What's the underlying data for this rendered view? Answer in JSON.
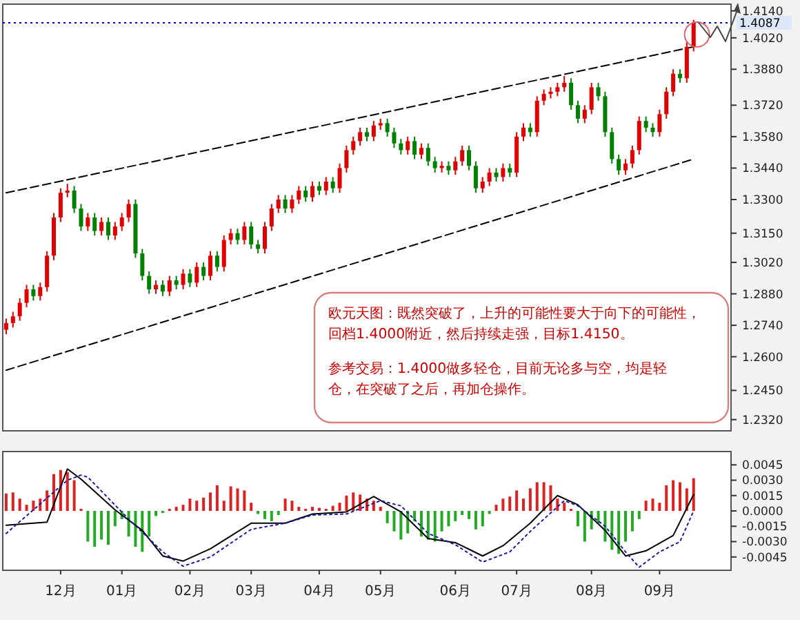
{
  "chart_data": [
    {
      "type": "candlestick",
      "categories": [
        null,
        null,
        null,
        null,
        null,
        null,
        null,
        null,
        null,
        null,
        null,
        null,
        null,
        null,
        null,
        null,
        null,
        null,
        null,
        null,
        null,
        null,
        null,
        null,
        null,
        null,
        null,
        null,
        null,
        null,
        null,
        null,
        null,
        null,
        null,
        null,
        null,
        null,
        null,
        null,
        null,
        null,
        null,
        null,
        null,
        null,
        null,
        null,
        null,
        null,
        null,
        null,
        null,
        null,
        null,
        null,
        null,
        null,
        null,
        null,
        null,
        null,
        null,
        null,
        null,
        null,
        null,
        null,
        null,
        null,
        null,
        null,
        null,
        null,
        null,
        null,
        null,
        null,
        null,
        null,
        null,
        null,
        null,
        null,
        null,
        null,
        null,
        null,
        null,
        null,
        null,
        null,
        null,
        null,
        null,
        null,
        null,
        null,
        null,
        null,
        null,
        null
      ],
      "ohlc": [
        [
          1.272,
          1.277,
          1.27,
          1.275
        ],
        [
          1.275,
          1.28,
          1.273,
          1.278
        ],
        [
          1.278,
          1.286,
          1.276,
          1.284
        ],
        [
          1.284,
          1.292,
          1.282,
          1.29
        ],
        [
          1.29,
          1.292,
          1.285,
          1.287
        ],
        [
          1.287,
          1.293,
          1.285,
          1.291
        ],
        [
          1.291,
          1.307,
          1.289,
          1.305
        ],
        [
          1.305,
          1.324,
          1.303,
          1.322
        ],
        [
          1.322,
          1.335,
          1.32,
          1.333
        ],
        [
          1.333,
          1.337,
          1.331,
          1.334
        ],
        [
          1.334,
          1.336,
          1.324,
          1.326
        ],
        [
          1.326,
          1.328,
          1.316,
          1.318
        ],
        [
          1.318,
          1.324,
          1.316,
          1.322
        ],
        [
          1.322,
          1.324,
          1.314,
          1.316
        ],
        [
          1.316,
          1.322,
          1.314,
          1.32
        ],
        [
          1.32,
          1.322,
          1.312,
          1.314
        ],
        [
          1.314,
          1.32,
          1.312,
          1.318
        ],
        [
          1.318,
          1.324,
          1.316,
          1.322
        ],
        [
          1.322,
          1.33,
          1.32,
          1.328
        ],
        [
          1.328,
          1.33,
          1.304,
          1.306
        ],
        [
          1.306,
          1.308,
          1.294,
          1.296
        ],
        [
          1.296,
          1.298,
          1.288,
          1.29
        ],
        [
          1.29,
          1.294,
          1.288,
          1.292
        ],
        [
          1.292,
          1.294,
          1.287,
          1.289
        ],
        [
          1.289,
          1.296,
          1.287,
          1.294
        ],
        [
          1.294,
          1.296,
          1.29,
          1.292
        ],
        [
          1.292,
          1.299,
          1.29,
          1.297
        ],
        [
          1.297,
          1.299,
          1.291,
          1.293
        ],
        [
          1.293,
          1.302,
          1.291,
          1.3
        ],
        [
          1.3,
          1.302,
          1.294,
          1.296
        ],
        [
          1.296,
          1.307,
          1.294,
          1.305
        ],
        [
          1.305,
          1.307,
          1.298,
          1.3
        ],
        [
          1.3,
          1.314,
          1.298,
          1.312
        ],
        [
          1.312,
          1.317,
          1.31,
          1.315
        ],
        [
          1.315,
          1.317,
          1.31,
          1.312
        ],
        [
          1.312,
          1.32,
          1.31,
          1.318
        ],
        [
          1.318,
          1.32,
          1.308,
          1.31
        ],
        [
          1.31,
          1.312,
          1.306,
          1.308
        ],
        [
          1.308,
          1.32,
          1.306,
          1.318
        ],
        [
          1.318,
          1.328,
          1.316,
          1.326
        ],
        [
          1.326,
          1.332,
          1.324,
          1.33
        ],
        [
          1.33,
          1.332,
          1.324,
          1.326
        ],
        [
          1.326,
          1.332,
          1.324,
          1.33
        ],
        [
          1.33,
          1.336,
          1.328,
          1.334
        ],
        [
          1.334,
          1.336,
          1.329,
          1.331
        ],
        [
          1.331,
          1.338,
          1.329,
          1.336
        ],
        [
          1.336,
          1.338,
          1.332,
          1.334
        ],
        [
          1.334,
          1.34,
          1.332,
          1.338
        ],
        [
          1.338,
          1.34,
          1.333,
          1.335
        ],
        [
          1.335,
          1.346,
          1.333,
          1.344
        ],
        [
          1.344,
          1.354,
          1.342,
          1.352
        ],
        [
          1.352,
          1.358,
          1.35,
          1.356
        ],
        [
          1.356,
          1.362,
          1.354,
          1.36
        ],
        [
          1.36,
          1.362,
          1.356,
          1.358
        ],
        [
          1.358,
          1.365,
          1.356,
          1.363
        ],
        [
          1.363,
          1.366,
          1.361,
          1.364
        ],
        [
          1.364,
          1.366,
          1.358,
          1.36
        ],
        [
          1.36,
          1.362,
          1.353,
          1.355
        ],
        [
          1.355,
          1.357,
          1.35,
          1.352
        ],
        [
          1.352,
          1.358,
          1.35,
          1.356
        ],
        [
          1.356,
          1.358,
          1.348,
          1.35
        ],
        [
          1.35,
          1.355,
          1.348,
          1.353
        ],
        [
          1.353,
          1.355,
          1.345,
          1.347
        ],
        [
          1.347,
          1.349,
          1.342,
          1.344
        ],
        [
          1.344,
          1.347,
          1.342,
          1.345
        ],
        [
          1.345,
          1.347,
          1.341,
          1.343
        ],
        [
          1.343,
          1.349,
          1.341,
          1.347
        ],
        [
          1.347,
          1.354,
          1.345,
          1.352
        ],
        [
          1.352,
          1.354,
          1.343,
          1.345
        ],
        [
          1.345,
          1.347,
          1.333,
          1.335
        ],
        [
          1.335,
          1.34,
          1.333,
          1.338
        ],
        [
          1.338,
          1.344,
          1.336,
          1.342
        ],
        [
          1.342,
          1.344,
          1.338,
          1.34
        ],
        [
          1.34,
          1.346,
          1.338,
          1.344
        ],
        [
          1.344,
          1.346,
          1.34,
          1.342
        ],
        [
          1.342,
          1.36,
          1.34,
          1.358
        ],
        [
          1.358,
          1.364,
          1.356,
          1.362
        ],
        [
          1.362,
          1.364,
          1.358,
          1.36
        ],
        [
          1.36,
          1.376,
          1.358,
          1.374
        ],
        [
          1.374,
          1.379,
          1.372,
          1.377
        ],
        [
          1.377,
          1.38,
          1.375,
          1.378
        ],
        [
          1.378,
          1.382,
          1.376,
          1.38
        ],
        [
          1.38,
          1.385,
          1.378,
          1.382
        ],
        [
          1.382,
          1.384,
          1.37,
          1.372
        ],
        [
          1.372,
          1.374,
          1.364,
          1.366
        ],
        [
          1.366,
          1.372,
          1.364,
          1.37
        ],
        [
          1.37,
          1.382,
          1.368,
          1.38
        ],
        [
          1.38,
          1.382,
          1.374,
          1.376
        ],
        [
          1.376,
          1.378,
          1.358,
          1.36
        ],
        [
          1.36,
          1.362,
          1.346,
          1.348
        ],
        [
          1.348,
          1.35,
          1.341,
          1.343
        ],
        [
          1.343,
          1.348,
          1.341,
          1.346
        ],
        [
          1.346,
          1.354,
          1.344,
          1.352
        ],
        [
          1.352,
          1.367,
          1.35,
          1.365
        ],
        [
          1.365,
          1.367,
          1.36,
          1.362
        ],
        [
          1.362,
          1.364,
          1.358,
          1.36
        ],
        [
          1.36,
          1.37,
          1.358,
          1.368
        ],
        [
          1.368,
          1.38,
          1.366,
          1.378
        ],
        [
          1.378,
          1.388,
          1.376,
          1.386
        ],
        [
          1.386,
          1.388,
          1.382,
          1.384
        ],
        [
          1.384,
          1.4,
          1.382,
          1.398
        ],
        [
          1.398,
          1.41,
          1.396,
          1.4087
        ]
      ],
      "series": [
        {
          "type": "line",
          "color": "#000000",
          "line_style": "dashed",
          "values": [
            1.333,
            null,
            null,
            null,
            null,
            null,
            null,
            null,
            null,
            null,
            null,
            null,
            null,
            null,
            null,
            null,
            null,
            null,
            null,
            null,
            null,
            null,
            null,
            null,
            null,
            null,
            null,
            null,
            null,
            null,
            null,
            null,
            null,
            null,
            null,
            null,
            null,
            null,
            null,
            null,
            null,
            null,
            null,
            null,
            null,
            null,
            null,
            null,
            null,
            null,
            null,
            null,
            null,
            null,
            null,
            null,
            null,
            null,
            null,
            null,
            null,
            null,
            null,
            null,
            null,
            null,
            null,
            null,
            null,
            null,
            null,
            null,
            null,
            null,
            null,
            null,
            null,
            null,
            null,
            null,
            null,
            null,
            null,
            null,
            null,
            null,
            null,
            null,
            null,
            null,
            null,
            null,
            null,
            null,
            null,
            null,
            null,
            null,
            null,
            null,
            null,
            1.398
          ]
        },
        {
          "type": "line",
          "color": "#000000",
          "line_style": "dashed",
          "values": [
            1.254,
            null,
            null,
            null,
            null,
            null,
            null,
            null,
            null,
            null,
            null,
            null,
            null,
            null,
            null,
            null,
            null,
            null,
            null,
            null,
            null,
            null,
            null,
            null,
            null,
            null,
            null,
            null,
            null,
            null,
            null,
            null,
            null,
            null,
            null,
            null,
            null,
            null,
            null,
            null,
            null,
            null,
            null,
            null,
            null,
            null,
            null,
            null,
            null,
            null,
            null,
            null,
            null,
            null,
            null,
            null,
            null,
            null,
            null,
            null,
            null,
            null,
            null,
            null,
            null,
            null,
            null,
            null,
            null,
            null,
            null,
            null,
            null,
            null,
            null,
            null,
            null,
            null,
            null,
            null,
            null,
            null,
            null,
            null,
            null,
            null,
            null,
            null,
            null,
            null,
            null,
            null,
            null,
            null,
            null,
            null,
            null,
            null,
            null,
            null,
            null,
            1.348
          ]
        }
      ],
      "ylim": [
        1.227,
        1.417
      ],
      "yticks": [
        {
          "value": 1.414,
          "label": "1.4140"
        },
        {
          "value": 1.402,
          "label": "1.4020"
        },
        {
          "value": 1.388,
          "label": "1.3880"
        },
        {
          "value": 1.372,
          "label": "1.3720"
        },
        {
          "value": 1.358,
          "label": "1.3580"
        },
        {
          "value": 1.344,
          "label": "1.3440"
        },
        {
          "value": 1.33,
          "label": "1.3300"
        },
        {
          "value": 1.315,
          "label": "1.3150"
        },
        {
          "value": 1.302,
          "label": "1.3020"
        },
        {
          "value": 1.288,
          "label": "1.2880"
        },
        {
          "value": 1.274,
          "label": "1.2740"
        },
        {
          "value": 1.26,
          "label": "1.2600"
        },
        {
          "value": 1.245,
          "label": "1.2450"
        },
        {
          "value": 1.232,
          "label": "1.2320"
        }
      ],
      "ref_lines": [
        {
          "axis": "y",
          "value": 1.4087,
          "label": "1.4087",
          "color": "#0000cc",
          "line_style": "dotted"
        }
      ],
      "annotations": [
        "欧元天图：既然突破了，上升的可能性要大于向下的可能性，回档1.4000附近，然后持续走强，目标1.4150。",
        "参考交易：1.4000做多轻仓，目前无论多与空，均是轻仓，在突破了之后，再加仓操作。"
      ]
    },
    {
      "type": "bar",
      "categories": [
        null,
        null,
        null,
        null,
        null,
        null,
        null,
        null,
        "12月",
        null,
        null,
        null,
        null,
        null,
        null,
        null,
        null,
        "01月",
        null,
        null,
        null,
        null,
        null,
        null,
        null,
        null,
        null,
        "02月",
        null,
        null,
        null,
        null,
        null,
        null,
        null,
        null,
        "03月",
        null,
        null,
        null,
        null,
        null,
        null,
        null,
        null,
        null,
        "04月",
        null,
        null,
        null,
        null,
        null,
        null,
        null,
        null,
        "05月",
        null,
        null,
        null,
        null,
        null,
        null,
        null,
        null,
        null,
        null,
        "06月",
        null,
        null,
        null,
        null,
        null,
        null,
        null,
        null,
        "07月",
        null,
        null,
        null,
        null,
        null,
        null,
        null,
        null,
        null,
        null,
        "08月",
        null,
        null,
        null,
        null,
        null,
        null,
        null,
        null,
        null,
        "09月",
        null,
        null,
        null,
        null,
        null
      ],
      "series": [
        {
          "color": "#dd2222",
          "values": [
            0.0017,
            0.0018,
            0.0012,
            0.0006,
            0.001,
            0.0012,
            0.002,
            0.0036,
            0.004,
            0.0038,
            0.003,
            0.0002,
            null,
            null,
            null,
            null,
            null,
            null,
            null,
            null,
            null,
            null,
            null,
            null,
            0.0002,
            0.0004,
            0.0006,
            0.0012,
            0.001,
            0.0013,
            0.0018,
            0.0025,
            0.001,
            0.0024,
            0.0022,
            0.002,
            0.0008,
            null,
            null,
            null,
            null,
            0.0012,
            0.001,
            0.0004,
            0.0002,
            0.0004,
            0.0003,
            0.0002,
            0.0005,
            0.0008,
            0.0015,
            0.0018,
            0.0016,
            0.0012,
            0.001,
            0.0004,
            null,
            null,
            null,
            null,
            null,
            null,
            null,
            null,
            null,
            null,
            null,
            null,
            null,
            null,
            null,
            null,
            0.0006,
            0.0012,
            0.0014,
            0.002,
            0.0012,
            0.0022,
            0.0028,
            0.0028,
            0.0025,
            0.0012,
            0.0008,
            0.0002,
            null,
            null,
            null,
            null,
            null,
            null,
            null,
            null,
            null,
            null,
            0.001,
            0.0012,
            0.0008,
            0.0025,
            0.003,
            0.0028,
            0.0022,
            0.0032
          ]
        },
        {
          "color": "#22aa22",
          "values": [
            null,
            null,
            null,
            null,
            null,
            null,
            null,
            null,
            null,
            null,
            null,
            null,
            -0.003,
            -0.0035,
            -0.0028,
            -0.0033,
            -0.0015,
            -0.0008,
            -0.0025,
            -0.0035,
            -0.004,
            -0.0025,
            -0.0005,
            -0.0002,
            null,
            null,
            null,
            null,
            null,
            null,
            null,
            null,
            null,
            null,
            null,
            null,
            null,
            -0.0003,
            -0.0008,
            -0.001,
            -0.0004,
            null,
            null,
            null,
            null,
            null,
            null,
            null,
            null,
            null,
            null,
            null,
            null,
            null,
            null,
            null,
            -0.0012,
            -0.002,
            -0.0028,
            -0.0022,
            -0.001,
            -0.0025,
            -0.0028,
            -0.003,
            -0.002,
            -0.0015,
            -0.001,
            -0.0004,
            -0.0008,
            -0.0018,
            -0.0015,
            -0.0003,
            null,
            null,
            null,
            null,
            null,
            null,
            null,
            null,
            null,
            null,
            null,
            null,
            -0.0015,
            -0.003,
            -0.0018,
            -0.0012,
            -0.003,
            -0.0038,
            -0.0042,
            -0.003,
            -0.002,
            -0.0008,
            null,
            null,
            null,
            null,
            null,
            null,
            null,
            null
          ]
        },
        {
          "type": "line",
          "color": "#000000",
          "line_style": "solid",
          "values": [
            -0.0014,
            null,
            null,
            null,
            null,
            null,
            -0.0011,
            null,
            null,
            0.0041,
            null,
            0.0031,
            null,
            null,
            null,
            null,
            0.0001,
            null,
            null,
            null,
            -0.0019,
            null,
            null,
            -0.0044,
            null,
            null,
            -0.0049,
            null,
            null,
            null,
            -0.0037,
            null,
            null,
            null,
            null,
            null,
            -0.0012,
            null,
            null,
            null,
            null,
            -0.0012,
            null,
            null,
            null,
            -0.0003,
            null,
            null,
            null,
            null,
            -0.0001,
            null,
            null,
            null,
            0.0014,
            null,
            null,
            null,
            -0.0001,
            null,
            null,
            null,
            -0.0027,
            null,
            null,
            null,
            -0.0031,
            null,
            null,
            null,
            -0.0044,
            null,
            null,
            -0.0034,
            null,
            null,
            null,
            -0.0012,
            null,
            null,
            null,
            0.0015,
            null,
            null,
            0.0006,
            null,
            null,
            null,
            -0.0019,
            null,
            null,
            -0.0044,
            null,
            null,
            -0.0039,
            null,
            null,
            null,
            -0.0024,
            null,
            null,
            0.0016
          ]
        },
        {
          "type": "line",
          "color": "#1a1aa0",
          "line_style": "dotted",
          "values": [
            -0.0022,
            null,
            null,
            null,
            null,
            null,
            null,
            null,
            null,
            0.003,
            null,
            0.0035,
            0.0033,
            null,
            null,
            null,
            null,
            null,
            -0.0008,
            null,
            null,
            null,
            null,
            -0.004,
            null,
            null,
            -0.0054,
            null,
            null,
            null,
            -0.0045,
            null,
            null,
            null,
            null,
            null,
            -0.0018,
            null,
            null,
            null,
            null,
            -0.0012,
            null,
            null,
            null,
            -0.0004,
            null,
            null,
            null,
            null,
            -0.0003,
            null,
            null,
            null,
            null,
            0.001,
            null,
            null,
            0.0005,
            null,
            null,
            null,
            -0.0022,
            null,
            null,
            null,
            -0.0033,
            null,
            null,
            null,
            -0.005,
            null,
            null,
            null,
            -0.004,
            null,
            null,
            -0.002,
            null,
            null,
            null,
            null,
            0.001,
            null,
            0.0005,
            null,
            null,
            null,
            -0.0015,
            null,
            null,
            -0.004,
            null,
            -0.0055,
            null,
            null,
            -0.004,
            null,
            null,
            -0.003,
            null,
            0
          ]
        }
      ],
      "ylim": [
        -0.0058,
        0.0058
      ],
      "yticks": [
        {
          "value": 0.0045,
          "label": "0.0045"
        },
        {
          "value": 0.003,
          "label": "0.0030"
        },
        {
          "value": 0.0015,
          "label": "0.0015"
        },
        {
          "value": 0,
          "label": "0.0000"
        },
        {
          "value": -0.0015,
          "label": "-0.0015"
        },
        {
          "value": -0.003,
          "label": "-0.0030"
        },
        {
          "value": -0.0045,
          "label": "-0.0045"
        }
      ]
    }
  ]
}
